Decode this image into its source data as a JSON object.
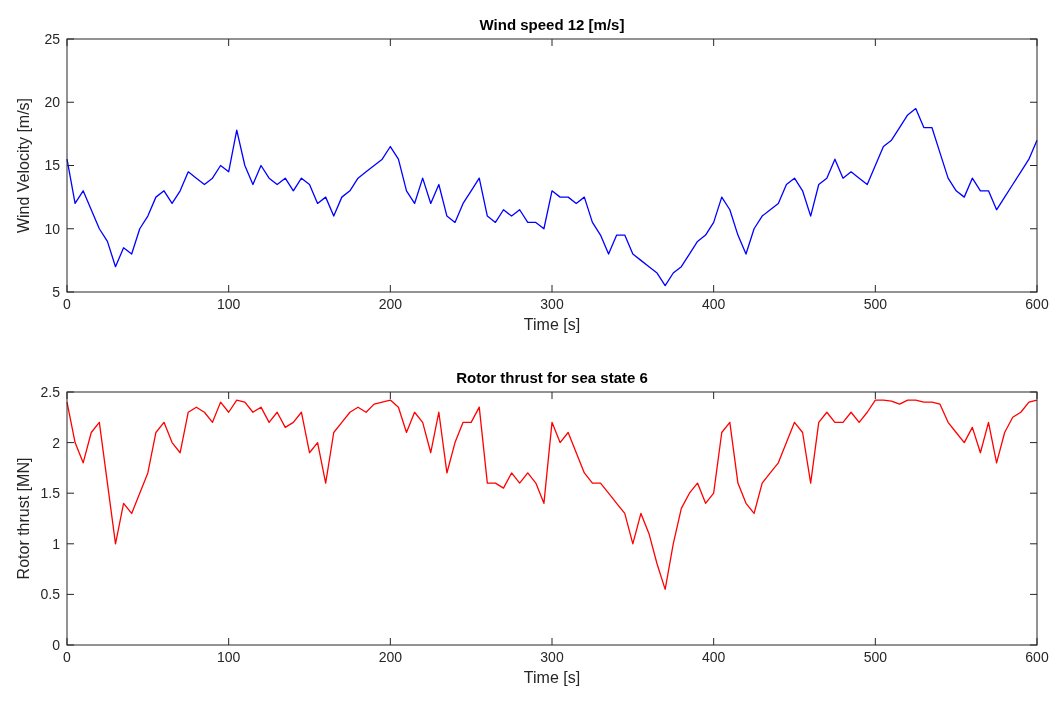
{
  "chart_data": [
    {
      "type": "line",
      "title": "Wind speed 12  [m/s]",
      "xlabel": "Time [s]",
      "ylabel": "Wind Velocity [m/s]",
      "xlim": [
        0,
        600
      ],
      "xticks": [
        0,
        100,
        200,
        300,
        400,
        500,
        600
      ],
      "ylim": [
        5,
        25
      ],
      "yticks": [
        5,
        10,
        15,
        20,
        25
      ],
      "x": [
        0,
        5,
        10,
        15,
        20,
        25,
        30,
        35,
        40,
        45,
        50,
        55,
        60,
        65,
        70,
        75,
        80,
        85,
        90,
        95,
        100,
        105,
        110,
        115,
        120,
        125,
        130,
        135,
        140,
        145,
        150,
        155,
        160,
        165,
        170,
        175,
        180,
        185,
        190,
        195,
        200,
        205,
        210,
        215,
        220,
        225,
        230,
        235,
        240,
        245,
        250,
        255,
        260,
        265,
        270,
        275,
        280,
        285,
        290,
        295,
        300,
        305,
        310,
        315,
        320,
        325,
        330,
        335,
        340,
        345,
        350,
        355,
        360,
        365,
        370,
        375,
        380,
        385,
        390,
        395,
        400,
        405,
        410,
        415,
        420,
        425,
        430,
        435,
        440,
        445,
        450,
        455,
        460,
        465,
        470,
        475,
        480,
        485,
        490,
        495,
        500,
        505,
        510,
        515,
        520,
        525,
        530,
        535,
        540,
        545,
        550,
        555,
        560,
        565,
        570,
        575,
        580,
        585,
        590,
        595,
        600
      ],
      "series": [
        {
          "color": "#0000ff",
          "values": [
            15.5,
            12,
            13,
            11.5,
            10,
            9,
            7,
            8.5,
            8,
            10,
            11,
            12.5,
            13,
            12,
            13,
            14.5,
            14,
            13.5,
            14,
            15,
            14.5,
            17.8,
            15,
            13.5,
            15,
            14,
            13.5,
            14,
            13,
            14,
            13.5,
            12,
            12.5,
            11,
            12.5,
            13,
            14,
            14.5,
            15,
            15.5,
            16.5,
            15.5,
            13,
            12,
            14,
            12,
            13.5,
            11,
            10.5,
            12,
            13,
            14,
            11,
            10.5,
            11.5,
            11,
            11.5,
            10.5,
            10.5,
            10,
            13,
            12.5,
            12.5,
            12,
            12.5,
            10.5,
            9.5,
            8,
            9.5,
            9.5,
            8,
            7.5,
            7,
            6.5,
            5.5,
            6.5,
            7,
            8,
            9,
            9.5,
            10.5,
            12.5,
            11.5,
            9.5,
            8,
            10,
            11,
            11.5,
            12,
            13.5,
            14,
            13,
            11,
            13.5,
            14,
            15.5,
            14,
            14.5,
            14,
            13.5,
            15,
            16.5,
            17,
            18,
            19,
            19.5,
            18,
            18,
            16,
            14,
            13,
            12.5,
            14,
            13,
            13,
            11.5,
            12.5,
            13.5,
            14.5,
            15.5,
            17
          ]
        }
      ]
    },
    {
      "type": "line",
      "title": "Rotor thrust for sea state  6",
      "xlabel": "Time [s]",
      "ylabel": "Rotor thrust [MN]",
      "xlim": [
        0,
        600
      ],
      "xticks": [
        0,
        100,
        200,
        300,
        400,
        500,
        600
      ],
      "ylim": [
        0,
        2.5
      ],
      "yticks": [
        0,
        0.5,
        1,
        1.5,
        2,
        2.5
      ],
      "x": [
        0,
        5,
        10,
        15,
        20,
        25,
        30,
        35,
        40,
        45,
        50,
        55,
        60,
        65,
        70,
        75,
        80,
        85,
        90,
        95,
        100,
        105,
        110,
        115,
        120,
        125,
        130,
        135,
        140,
        145,
        150,
        155,
        160,
        165,
        170,
        175,
        180,
        185,
        190,
        195,
        200,
        205,
        210,
        215,
        220,
        225,
        230,
        235,
        240,
        245,
        250,
        255,
        260,
        265,
        270,
        275,
        280,
        285,
        290,
        295,
        300,
        305,
        310,
        315,
        320,
        325,
        330,
        335,
        340,
        345,
        350,
        355,
        360,
        365,
        370,
        375,
        380,
        385,
        390,
        395,
        400,
        405,
        410,
        415,
        420,
        425,
        430,
        435,
        440,
        445,
        450,
        455,
        460,
        465,
        470,
        475,
        480,
        485,
        490,
        495,
        500,
        505,
        510,
        515,
        520,
        525,
        530,
        535,
        540,
        545,
        550,
        555,
        560,
        565,
        570,
        575,
        580,
        585,
        590,
        595,
        600
      ],
      "series": [
        {
          "color": "#ff0000",
          "values": [
            2.4,
            2,
            1.8,
            2.1,
            2.2,
            1.6,
            1,
            1.4,
            1.3,
            1.5,
            1.7,
            2.1,
            2.2,
            2,
            1.9,
            2.3,
            2.35,
            2.3,
            2.2,
            2.4,
            2.3,
            2.42,
            2.4,
            2.3,
            2.35,
            2.2,
            2.3,
            2.15,
            2.2,
            2.3,
            1.9,
            2,
            1.6,
            2.1,
            2.2,
            2.3,
            2.35,
            2.3,
            2.38,
            2.4,
            2.42,
            2.35,
            2.1,
            2.3,
            2.2,
            1.9,
            2.3,
            1.7,
            2,
            2.2,
            2.2,
            2.35,
            1.6,
            1.6,
            1.55,
            1.7,
            1.6,
            1.7,
            1.6,
            1.4,
            2.2,
            2,
            2.1,
            1.9,
            1.7,
            1.6,
            1.6,
            1.5,
            1.4,
            1.3,
            1,
            1.3,
            1.1,
            0.8,
            0.55,
            1,
            1.35,
            1.5,
            1.6,
            1.4,
            1.5,
            2.1,
            2.2,
            1.6,
            1.4,
            1.3,
            1.6,
            1.7,
            1.8,
            2,
            2.2,
            2.1,
            1.6,
            2.2,
            2.3,
            2.2,
            2.2,
            2.3,
            2.2,
            2.3,
            2.42,
            2.42,
            2.41,
            2.38,
            2.42,
            2.42,
            2.4,
            2.4,
            2.38,
            2.2,
            2.1,
            2,
            2.15,
            1.9,
            2.2,
            1.8,
            2.1,
            2.25,
            2.3,
            2.4,
            2.42
          ]
        }
      ]
    }
  ]
}
